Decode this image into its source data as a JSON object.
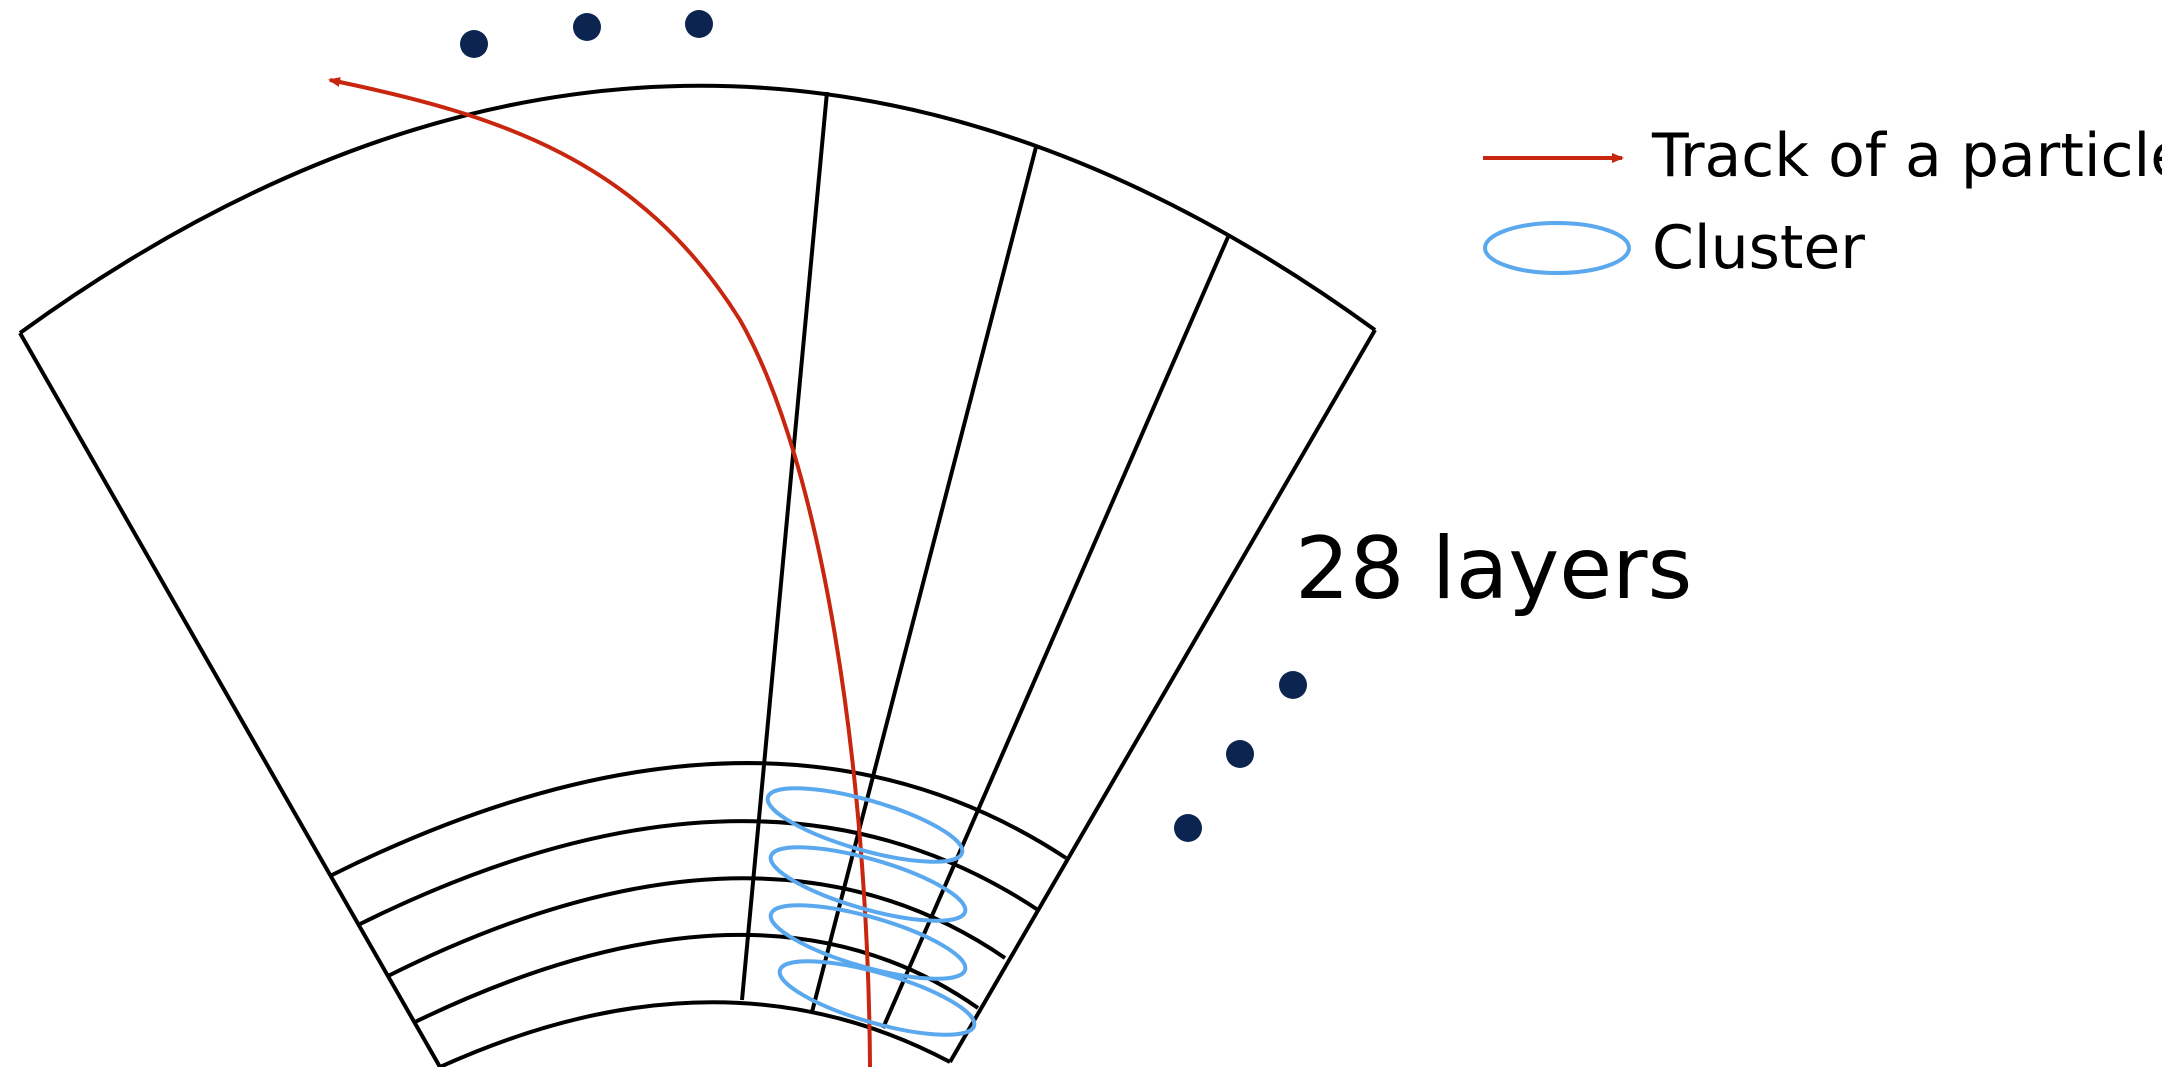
{
  "legend": {
    "track_label": "Track of a particle",
    "cluster_label": "Cluster"
  },
  "annotation": {
    "layers_label": "28 layers"
  },
  "colors": {
    "outline": "#000000",
    "track": "#c8260f",
    "cluster": "#5aa8ee",
    "dots": "#0b2550",
    "background": "#ffffff"
  },
  "icons": {
    "ellipsis_top": "three-dots",
    "ellipsis_right": "three-dots",
    "track_arrow": "arrow",
    "cluster_ellipse": "ellipse"
  }
}
